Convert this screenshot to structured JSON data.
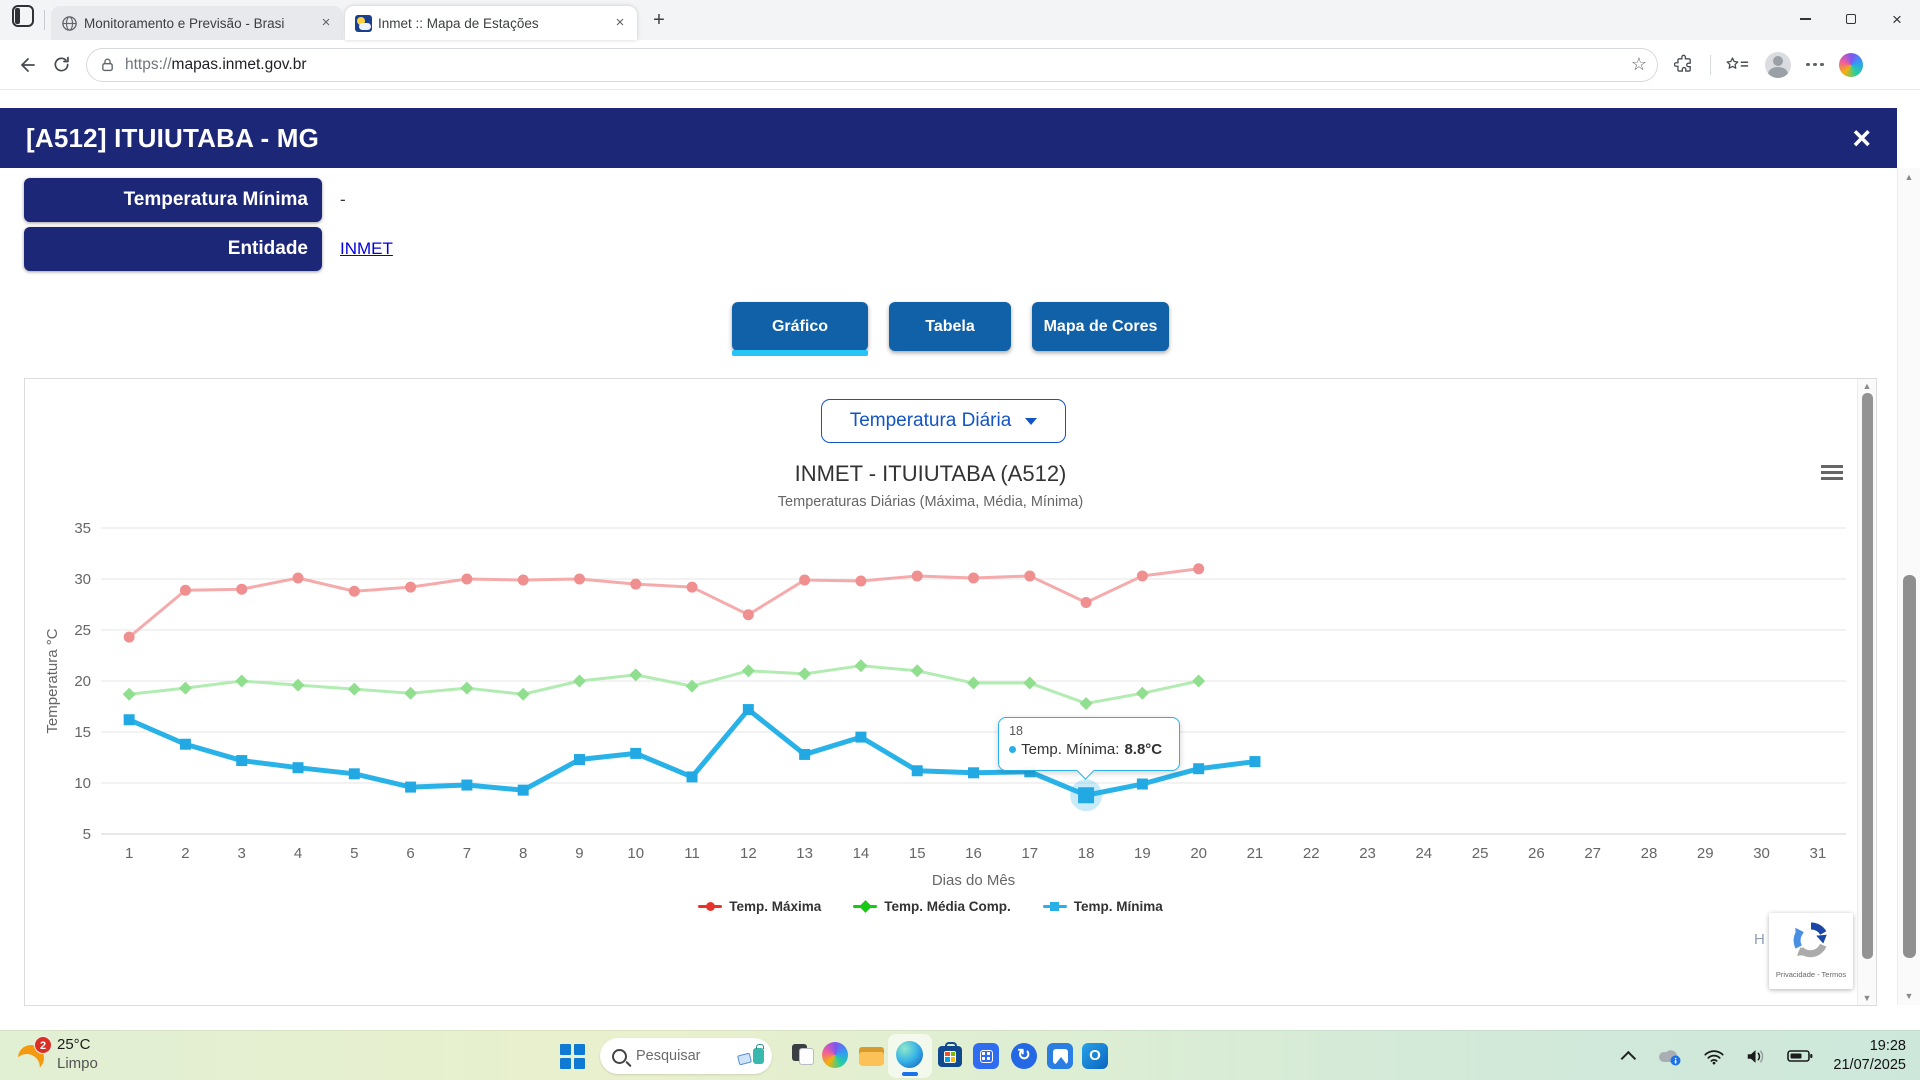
{
  "browser": {
    "tabs": [
      {
        "title": "Monitoramento e Previsão - Brasi"
      },
      {
        "title": "Inmet :: Mapa de Estações"
      }
    ],
    "new_tab_glyph": "+",
    "tab_close_glyph": "×",
    "window_close_glyph": "×",
    "address": {
      "protocol": "https://",
      "host": "mapas.inmet.gov.br"
    }
  },
  "modal": {
    "title": "[A512] ITUIUTABA - MG",
    "close_glyph": "×",
    "rows": [
      {
        "label": "Temperatura Mínima",
        "value": "-"
      },
      {
        "label": "Entidade",
        "value": "INMET"
      }
    ],
    "view_tabs": [
      {
        "label": "Gráfico"
      },
      {
        "label": "Tabela"
      },
      {
        "label": "Mapa de Cores"
      }
    ]
  },
  "chart_panel": {
    "metric_selector": "Temperatura Diária"
  },
  "chart_data": {
    "type": "line",
    "title": "INMET - ITUIUTABA (A512)",
    "subtitle": "Temperaturas Diárias (Máxima, Média, Mínima)",
    "xlabel": "Dias do Mês",
    "ylabel": "Temperatura °C",
    "categories": [
      "1",
      "2",
      "3",
      "4",
      "5",
      "6",
      "7",
      "8",
      "9",
      "10",
      "11",
      "12",
      "13",
      "14",
      "15",
      "16",
      "17",
      "18",
      "19",
      "20",
      "21",
      "22",
      "23",
      "24",
      "25",
      "26",
      "27",
      "28",
      "29",
      "30",
      "31"
    ],
    "ylim": [
      5,
      35
    ],
    "yticks": [
      5,
      10,
      15,
      20,
      25,
      30,
      35
    ],
    "grid": true,
    "legend_position": "bottom",
    "series": [
      {
        "name": "Temp. Máxima",
        "marker": "circle",
        "line_width": 3,
        "color": "#f08f8f",
        "line_color": "#f5abab",
        "legend_color": "#e8332a",
        "values": [
          24.3,
          28.9,
          29.0,
          30.1,
          28.8,
          29.2,
          30.0,
          29.9,
          30.0,
          29.5,
          29.2,
          26.5,
          29.9,
          29.8,
          30.3,
          30.1,
          30.3,
          27.7,
          30.3,
          31.0
        ]
      },
      {
        "name": "Temp. Média Comp.",
        "marker": "diamond",
        "line_width": 3,
        "color": "#8fdf8f",
        "line_color": "#b2ecb2",
        "legend_color": "#17c917",
        "values": [
          18.7,
          19.3,
          20.0,
          19.6,
          19.2,
          18.8,
          19.3,
          18.7,
          20.0,
          20.6,
          19.5,
          21.0,
          20.7,
          21.5,
          21.0,
          19.8,
          19.8,
          17.8,
          18.8,
          20.0
        ]
      },
      {
        "name": "Temp. Mínima",
        "marker": "square",
        "line_width": 5,
        "color": "#22a9e4",
        "line_color": "#29b2e8",
        "legend_color": "#29b0e8",
        "values": [
          16.2,
          13.8,
          12.2,
          11.5,
          10.9,
          9.6,
          9.8,
          9.3,
          12.3,
          12.9,
          10.6,
          17.2,
          12.8,
          14.5,
          11.2,
          11.0,
          11.1,
          8.8,
          9.9,
          11.4,
          12.1
        ]
      }
    ],
    "highlight": {
      "series_index": 2,
      "category": 18,
      "value": 8.8
    }
  },
  "tooltip": {
    "header": "18",
    "label": "Temp. Mínima:",
    "value": "8.8°C"
  },
  "recaptcha": {
    "caption": "Privacidade - Termos"
  },
  "credit_fragment": "H",
  "taskbar": {
    "weather": {
      "badge": "2",
      "temp": "25°C",
      "condition": "Limpo"
    },
    "search_placeholder": "Pesquisar",
    "clock": {
      "time": "19:28",
      "date": "21/07/2025"
    }
  },
  "colors": {
    "header_navy": "#1d2777",
    "button_blue": "#1161a8",
    "active_underline_cyan": "#27c4f5",
    "select_blue": "#1254c8",
    "link_blue": "#0000e0",
    "tooltip_border": "#29b0e8"
  }
}
